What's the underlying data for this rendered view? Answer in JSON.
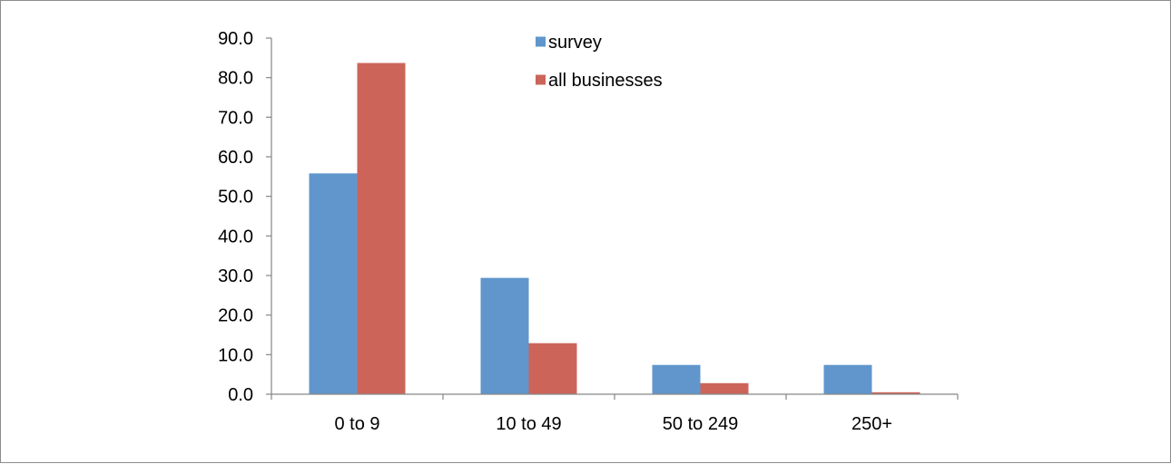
{
  "chart_data": {
    "type": "bar",
    "categories": [
      "0 to 9",
      "10 to 49",
      "50 to 249",
      "250+"
    ],
    "series": [
      {
        "name": "survey",
        "values": [
          55.8,
          29.4,
          7.4,
          7.4
        ],
        "color": "#6096cc"
      },
      {
        "name": "all businesses",
        "values": [
          83.7,
          12.9,
          2.8,
          0.5
        ],
        "color": "#cc645a"
      }
    ],
    "ylim": [
      0,
      90
    ],
    "yticks": [
      "0.0",
      "10.0",
      "20.0",
      "30.0",
      "40.0",
      "50.0",
      "60.0",
      "70.0",
      "80.0",
      "90.0"
    ],
    "title": "",
    "xlabel": "",
    "ylabel": "",
    "grid": false,
    "legend_position": "top-center"
  }
}
